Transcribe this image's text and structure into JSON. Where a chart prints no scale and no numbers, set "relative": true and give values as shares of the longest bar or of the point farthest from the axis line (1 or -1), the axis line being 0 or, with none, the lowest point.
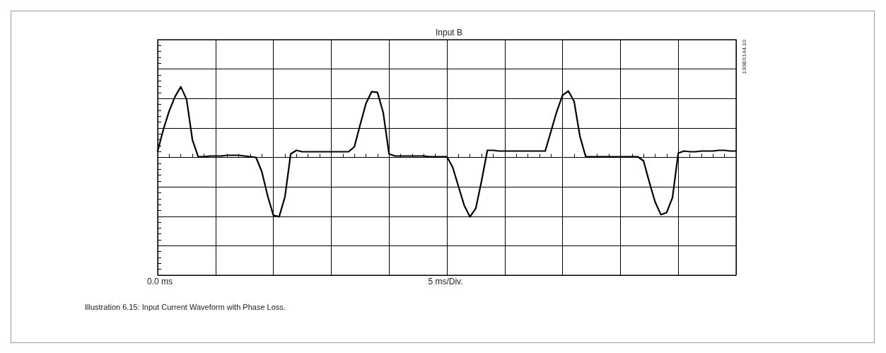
{
  "chart_data": {
    "type": "line",
    "title": "Input B",
    "annotations": [
      "130BX144.10",
      "Illustration 6.15: Input Current Waveform with Phase Loss.",
      "0.0 ms",
      "5 ms/Div."
    ],
    "relative": true,
    "grid": true,
    "marker": "none",
    "line_style": "solid",
    "categories": [
      null,
      null,
      null,
      null,
      null,
      null,
      null,
      null,
      null,
      null,
      null,
      null,
      null,
      null,
      null,
      null,
      null,
      null,
      null,
      null,
      null,
      null,
      null,
      null,
      null,
      null,
      null,
      null,
      null,
      null,
      null,
      null,
      null,
      null,
      null,
      null,
      null,
      null,
      null,
      null,
      null,
      null,
      null,
      null,
      null,
      null,
      null,
      null,
      null,
      null,
      null,
      null,
      null,
      null,
      null,
      null,
      null,
      null,
      null,
      null,
      null,
      null,
      null,
      null,
      null,
      null,
      null,
      null,
      null,
      null,
      null,
      null,
      null,
      null,
      null,
      null,
      null,
      null,
      null,
      null,
      null,
      null,
      null,
      null,
      null,
      null,
      null,
      null,
      null,
      null,
      null,
      null,
      null,
      null,
      null,
      null,
      null,
      null,
      null,
      null,
      null
    ],
    "series": [
      {
        "color": "#000000",
        "values": [
          0.09,
          0.4,
          0.66,
          0.86,
          1.0,
          0.82,
          0.25,
          0.01,
          0.01,
          0.02,
          0.02,
          0.02,
          0.03,
          0.03,
          0.03,
          0.02,
          0.01,
          0.0,
          -0.2,
          -0.54,
          -0.82,
          -0.84,
          -0.56,
          0.05,
          0.1,
          0.08,
          0.08,
          0.08,
          0.08,
          0.08,
          0.08,
          0.08,
          0.08,
          0.08,
          0.15,
          0.46,
          0.76,
          0.93,
          0.92,
          0.63,
          0.05,
          0.02,
          0.02,
          0.02,
          0.02,
          0.02,
          0.02,
          0.01,
          0.01,
          0.01,
          0.01,
          -0.14,
          -0.41,
          -0.68,
          -0.84,
          -0.72,
          -0.33,
          0.1,
          0.1,
          0.09,
          0.09,
          0.09,
          0.09,
          0.09,
          0.09,
          0.09,
          0.09,
          0.09,
          0.37,
          0.65,
          0.88,
          0.94,
          0.79,
          0.3,
          0.01,
          0.01,
          0.01,
          0.01,
          0.01,
          0.01,
          0.01,
          0.01,
          0.01,
          0.01,
          -0.05,
          -0.35,
          -0.63,
          -0.81,
          -0.78,
          -0.57,
          0.06,
          0.09,
          0.08,
          0.08,
          0.09,
          0.09,
          0.09,
          0.1,
          0.1,
          0.09,
          0.09
        ]
      }
    ]
  }
}
